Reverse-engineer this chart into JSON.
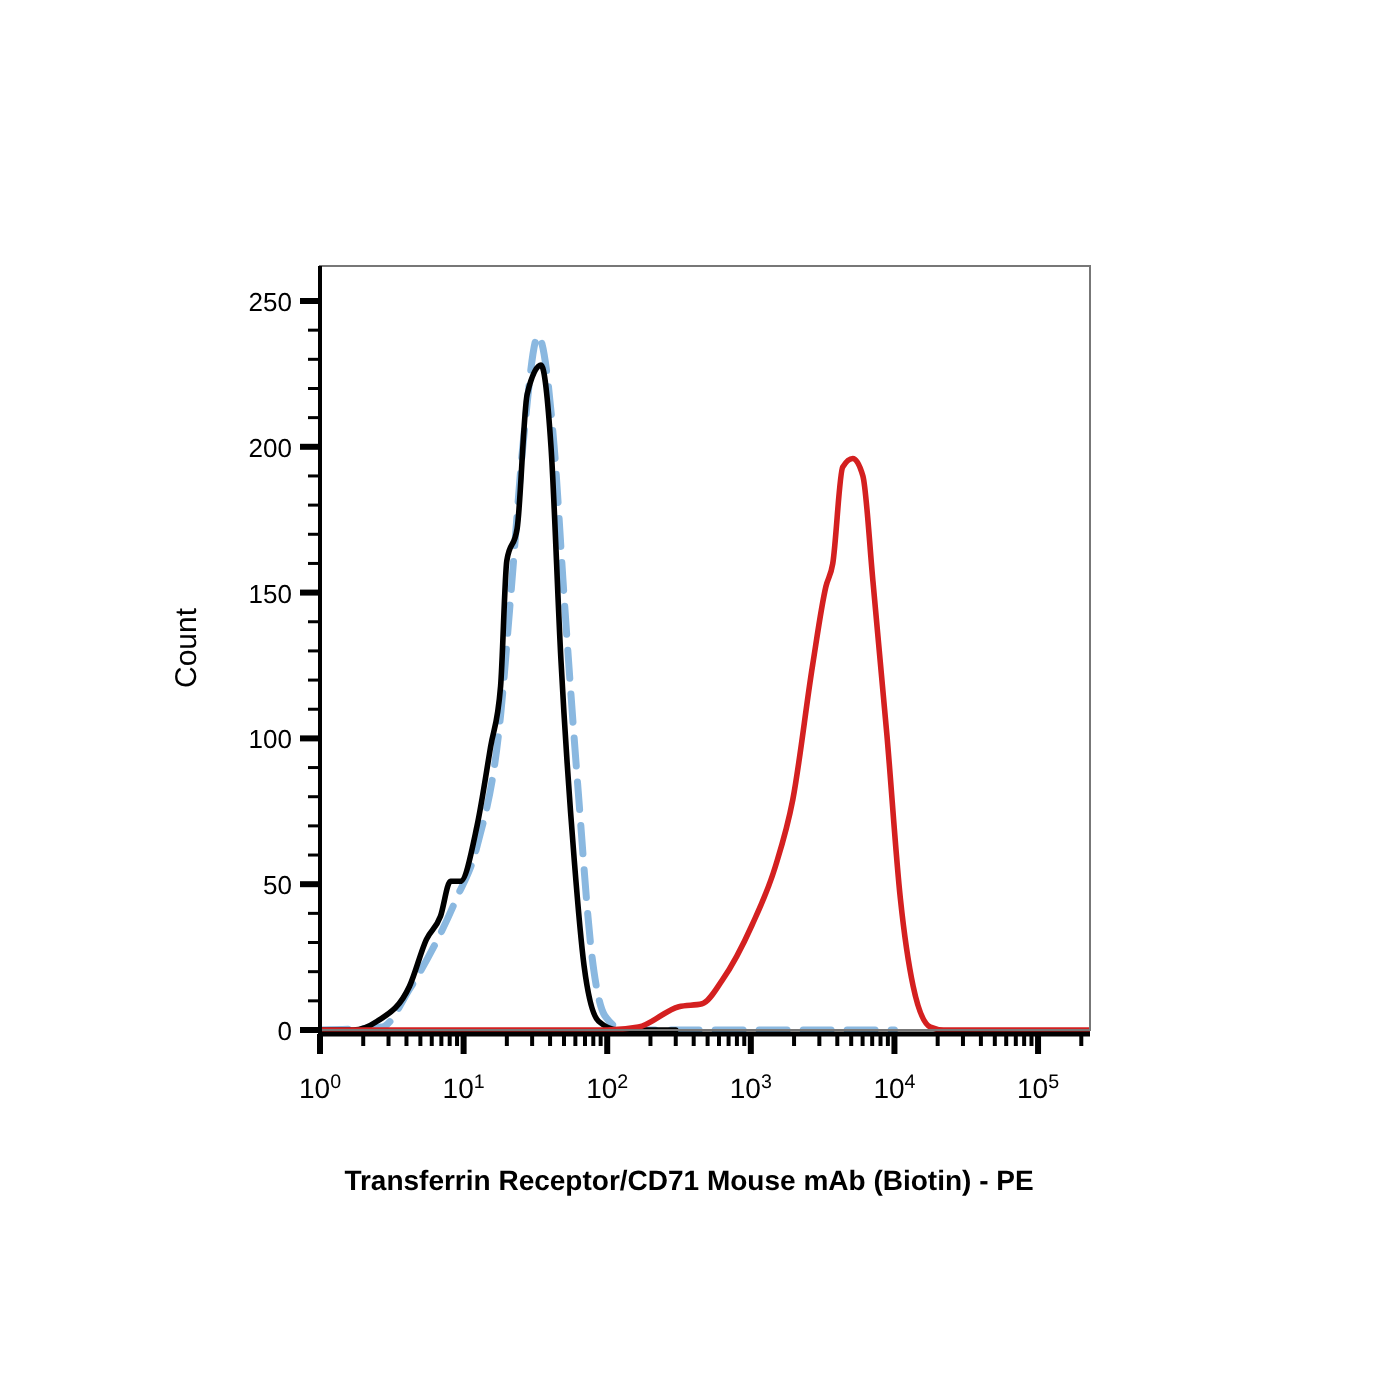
{
  "chart_data": {
    "type": "line",
    "xlabel": "Transferrin Receptor/CD71 Mouse mAb (Biotin) - PE",
    "ylabel": "Count",
    "log": "x",
    "grid": false,
    "xlim": [
      1,
      230000
    ],
    "ylim": [
      0,
      262
    ],
    "xticks": [
      {
        "value": 1,
        "label": "10$^{0}$"
      },
      {
        "value": 2,
        "label": null
      },
      {
        "value": 3,
        "label": null
      },
      {
        "value": 4,
        "label": null
      },
      {
        "value": 5,
        "label": null
      },
      {
        "value": 6,
        "label": null
      },
      {
        "value": 7,
        "label": null
      },
      {
        "value": 8,
        "label": null
      },
      {
        "value": 9,
        "label": null
      },
      {
        "value": 10,
        "label": "10$^{1}$"
      },
      {
        "value": 20,
        "label": null
      },
      {
        "value": 30,
        "label": null
      },
      {
        "value": 40,
        "label": null
      },
      {
        "value": 50,
        "label": null
      },
      {
        "value": 60,
        "label": null
      },
      {
        "value": 70,
        "label": null
      },
      {
        "value": 80,
        "label": null
      },
      {
        "value": 90,
        "label": null
      },
      {
        "value": 100,
        "label": "10$^{2}$"
      },
      {
        "value": 200,
        "label": null
      },
      {
        "value": 300,
        "label": null
      },
      {
        "value": 400,
        "label": null
      },
      {
        "value": 500,
        "label": null
      },
      {
        "value": 600,
        "label": null
      },
      {
        "value": 700,
        "label": null
      },
      {
        "value": 800,
        "label": null
      },
      {
        "value": 900,
        "label": null
      },
      {
        "value": 1000,
        "label": "10$^{3}$"
      },
      {
        "value": 2000,
        "label": null
      },
      {
        "value": 3000,
        "label": null
      },
      {
        "value": 4000,
        "label": null
      },
      {
        "value": 5000,
        "label": null
      },
      {
        "value": 6000,
        "label": null
      },
      {
        "value": 7000,
        "label": null
      },
      {
        "value": 8000,
        "label": null
      },
      {
        "value": 9000,
        "label": null
      },
      {
        "value": 10000,
        "label": "10$^{4}$"
      },
      {
        "value": 20000,
        "label": null
      },
      {
        "value": 30000,
        "label": null
      },
      {
        "value": 40000,
        "label": null
      },
      {
        "value": 50000,
        "label": null
      },
      {
        "value": 60000,
        "label": null
      },
      {
        "value": 70000,
        "label": null
      },
      {
        "value": 80000,
        "label": null
      },
      {
        "value": 90000,
        "label": null
      },
      {
        "value": 100000,
        "label": "10$^{5}$"
      },
      {
        "value": 200000,
        "label": null
      }
    ],
    "yticks": [
      0,
      {
        "value": 10,
        "label": null
      },
      {
        "value": 20,
        "label": null
      },
      {
        "value": 30,
        "label": null
      },
      {
        "value": 40,
        "label": null
      },
      50,
      {
        "value": 60,
        "label": null
      },
      {
        "value": 70,
        "label": null
      },
      {
        "value": 80,
        "label": null
      },
      {
        "value": 90,
        "label": null
      },
      100,
      {
        "value": 110,
        "label": null
      },
      {
        "value": 120,
        "label": null
      },
      {
        "value": 130,
        "label": null
      },
      {
        "value": 140,
        "label": null
      },
      150,
      {
        "value": 160,
        "label": null
      },
      {
        "value": 170,
        "label": null
      },
      {
        "value": 180,
        "label": null
      },
      {
        "value": 190,
        "label": null
      },
      200,
      {
        "value": 210,
        "label": null
      },
      {
        "value": 220,
        "label": null
      },
      {
        "value": 230,
        "label": null
      },
      {
        "value": 240,
        "label": null
      },
      250
    ],
    "series": [
      {
        "color": "#8ab8e0",
        "line_style": "dashed",
        "x": [
          1,
          2.7,
          4.2,
          8.9,
          12.4,
          18.1,
          21.3,
          26.3,
          33,
          42.7,
          50,
          63,
          78,
          96,
          132,
          10000
        ],
        "values": [
          0,
          1,
          14,
          45,
          63,
          108,
          149,
          204,
          238,
          200,
          149,
          81,
          26,
          5,
          0,
          0
        ]
      },
      {
        "color": "#000000",
        "line_style": "solid",
        "x": [
          1,
          1.7,
          2.5,
          4.2,
          5.5,
          6.9,
          8.1,
          9.5,
          12.4,
          15.4,
          18.1,
          20,
          23.6,
          27.7,
          34.6,
          40.6,
          47.6,
          59,
          69,
          87,
          120,
          300
        ],
        "values": [
          0,
          0,
          3,
          15,
          31,
          39,
          51,
          51,
          70,
          97,
          118,
          161,
          172,
          218,
          228,
          200,
          127,
          58,
          22,
          3,
          0,
          0
        ]
      },
      {
        "color": "#d42020",
        "line_style": "solid",
        "x": [
          1,
          100,
          165,
          315,
          458,
          631,
          1020,
          1480,
          1960,
          2690,
          3330,
          3720,
          4360,
          5130,
          6030,
          7080,
          8870,
          11000,
          13500,
          17800,
          22000,
          230000
        ],
        "values": [
          0,
          0,
          1,
          8,
          9,
          17,
          36,
          56,
          79,
          125,
          152,
          160,
          193,
          196,
          190,
          154,
          101,
          45,
          15,
          1,
          0,
          0
        ]
      }
    ]
  }
}
